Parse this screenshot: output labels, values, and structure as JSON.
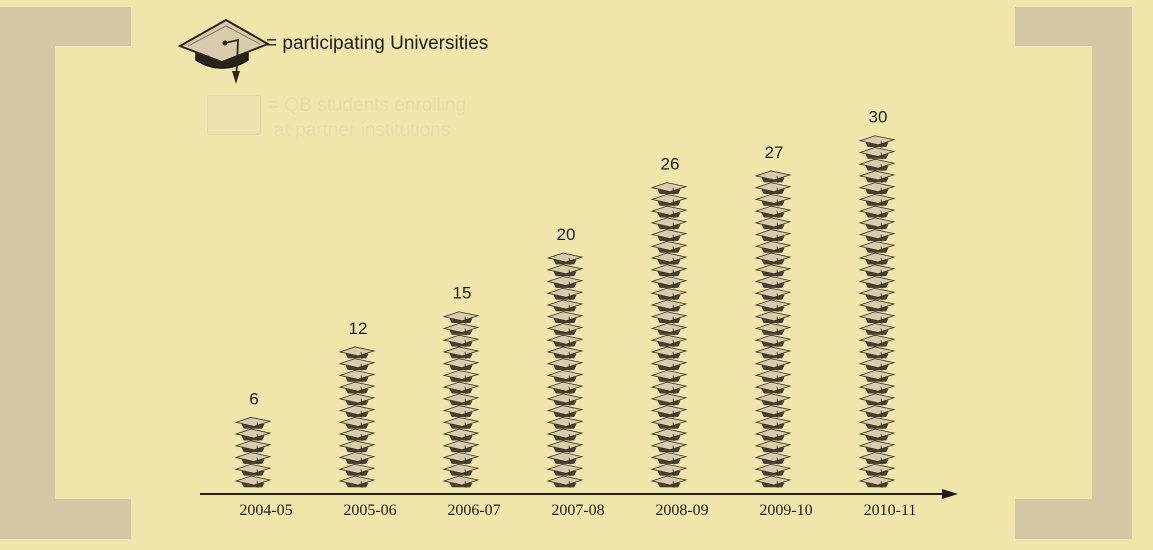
{
  "legend": {
    "universities_label": "= participating Universities",
    "universities_icon": "graduation-cap-icon",
    "students_label_line1": "= QB students enrolling",
    "students_label_line2": "at partner institutions"
  },
  "colors": {
    "background": "#f0e6ac",
    "bracket": "#d3c7a4",
    "cap_top": "#d9ccad",
    "cap_outline": "#3a3226",
    "axis": "#1e1e1e"
  },
  "chart_data": {
    "type": "bar",
    "categories": [
      "2004-05",
      "2005-06",
      "2006-07",
      "2007-08",
      "2008-09",
      "2009-10",
      "2010-11"
    ],
    "series": [
      {
        "values": [
          6,
          12,
          15,
          20,
          26,
          27,
          30
        ]
      }
    ],
    "title": "",
    "xlabel": "",
    "ylabel": "",
    "ylim": [
      0,
      30
    ],
    "grid": false,
    "legend_placement": "top-left"
  }
}
